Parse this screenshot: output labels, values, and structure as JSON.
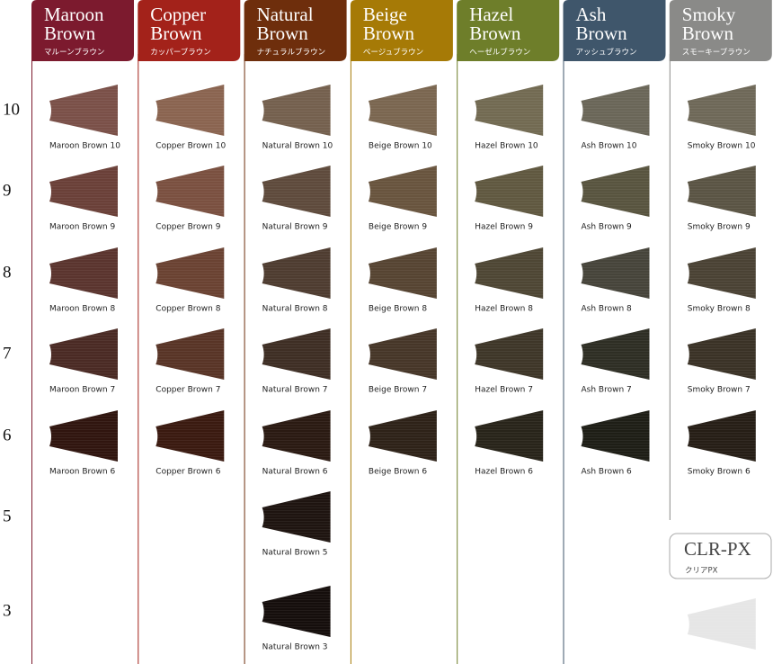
{
  "levels": [
    "10",
    "9",
    "8",
    "7",
    "6",
    "5",
    "3"
  ],
  "columns": [
    {
      "title_lines": [
        "Maroon",
        "Brown"
      ],
      "kana": "マルーンブラウン",
      "color": "#7c1a2e",
      "swatches": [
        {
          "label": "Maroon Brown 10",
          "color": "#7a5048"
        },
        {
          "label": "Maroon Brown 9",
          "color": "#6a4038"
        },
        {
          "label": "Maroon Brown 8",
          "color": "#5a342e"
        },
        {
          "label": "Maroon Brown 7",
          "color": "#4a2a24"
        },
        {
          "label": "Maroon Brown 6",
          "color": "#30150f"
        }
      ]
    },
    {
      "title_lines": [
        "Copper",
        "Brown"
      ],
      "kana": "カッパーブラウン",
      "color": "#a3221a",
      "swatches": [
        {
          "label": "Copper Brown 10",
          "color": "#8a6450"
        },
        {
          "label": "Copper Brown 9",
          "color": "#7a5040"
        },
        {
          "label": "Copper Brown 8",
          "color": "#6a4232"
        },
        {
          "label": "Copper Brown 7",
          "color": "#583426"
        },
        {
          "label": "Copper Brown 6",
          "color": "#3a1a10"
        }
      ]
    },
    {
      "title_lines": [
        "Natural",
        "Brown"
      ],
      "kana": "ナチュラルブラウン",
      "color": "#6e2e0c",
      "swatches": [
        {
          "label": "Natural Brown 10",
          "color": "#74604e"
        },
        {
          "label": "Natural Brown 9",
          "color": "#5e4a3c"
        },
        {
          "label": "Natural Brown 8",
          "color": "#4e3c30"
        },
        {
          "label": "Natural Brown 7",
          "color": "#3e2e24"
        },
        {
          "label": "Natural Brown 6",
          "color": "#2a1a12"
        },
        {
          "label": "Natural Brown 5",
          "color": "#1e1410"
        },
        {
          "label": "Natural Brown 3",
          "color": "#150e0c"
        }
      ]
    },
    {
      "title_lines": [
        "Beige",
        "Brown"
      ],
      "kana": "ベージュブラウン",
      "color": "#a67a06",
      "swatches": [
        {
          "label": "Beige Brown 10",
          "color": "#7a6650"
        },
        {
          "label": "Beige Brown 9",
          "color": "#68543e"
        },
        {
          "label": "Beige Brown 8",
          "color": "#564432"
        },
        {
          "label": "Beige Brown 7",
          "color": "#463628"
        },
        {
          "label": "Beige Brown 6",
          "color": "#2e2218"
        }
      ]
    },
    {
      "title_lines": [
        "Hazel",
        "Brown"
      ],
      "kana": "ヘーゼルブラウン",
      "color": "#6e7e2a",
      "swatches": [
        {
          "label": "Hazel Brown 10",
          "color": "#726a52"
        },
        {
          "label": "Hazel Brown 9",
          "color": "#605840"
        },
        {
          "label": "Hazel Brown 8",
          "color": "#4e4634"
        },
        {
          "label": "Hazel Brown 7",
          "color": "#3e3628"
        },
        {
          "label": "Hazel Brown 6",
          "color": "#28241a"
        }
      ]
    },
    {
      "title_lines": [
        "Ash",
        "Brown"
      ],
      "kana": "アッシュブラウン",
      "color": "#3f566b",
      "swatches": [
        {
          "label": "Ash Brown 10",
          "color": "#6a6658"
        },
        {
          "label": "Ash Brown 9",
          "color": "#58543f"
        },
        {
          "label": "Ash Brown 8",
          "color": "#46443a"
        },
        {
          "label": "Ash Brown 7",
          "color": "#2e2e24"
        },
        {
          "label": "Ash Brown 6",
          "color": "#1e1e16"
        }
      ]
    },
    {
      "title_lines": [
        "Smoky",
        "Brown"
      ],
      "kana": "スモーキーブラウン",
      "color": "#8a8a88",
      "swatches": [
        {
          "label": "Smoky Brown 10",
          "color": "#6e6858"
        },
        {
          "label": "Smoky Brown 9",
          "color": "#5a5444"
        },
        {
          "label": "Smoky Brown 8",
          "color": "#4a4234"
        },
        {
          "label": "Smoky Brown 7",
          "color": "#3a3226"
        },
        {
          "label": "Smoky Brown 6",
          "color": "#261e16"
        }
      ]
    }
  ],
  "clear": {
    "title": "CLR-PX",
    "kana": "クリアPX",
    "color": "#e6e6e6"
  }
}
